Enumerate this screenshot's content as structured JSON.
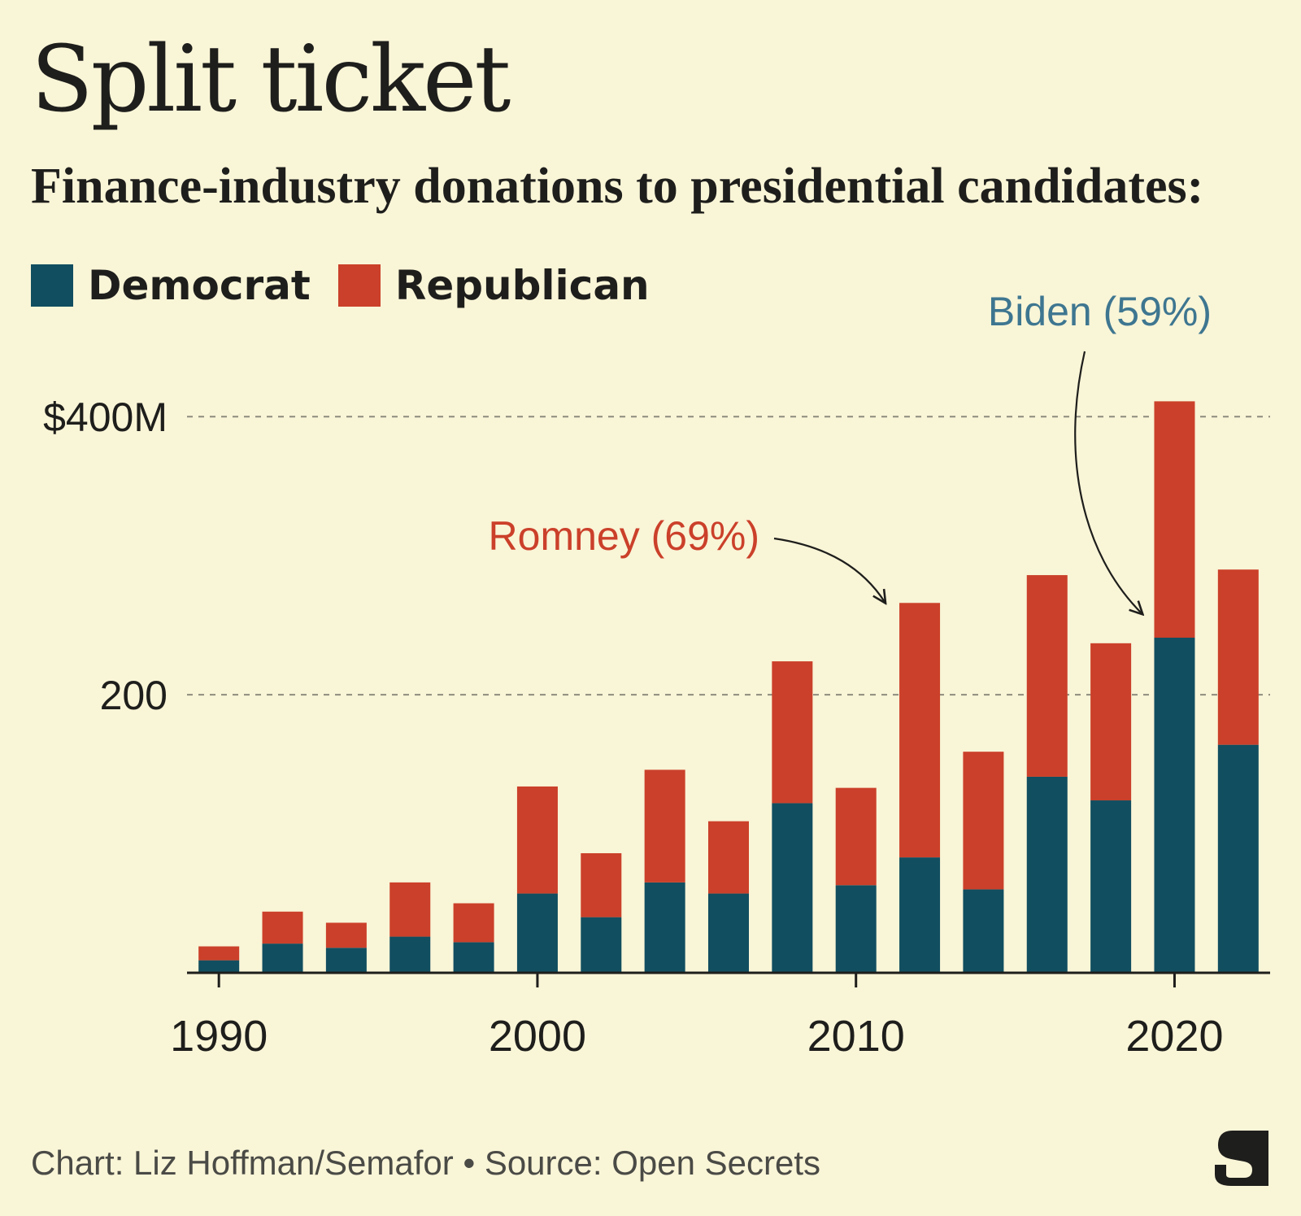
{
  "header": {
    "title": "Split ticket",
    "subtitle": "Finance-industry donations to presidential candidates:"
  },
  "colors": {
    "democrat": "#114e60",
    "republican": "#cb402a",
    "background": "#f9f5d7",
    "text": "#1e1e1c"
  },
  "legend": {
    "items": [
      {
        "label": "Democrat",
        "color": "#114e60"
      },
      {
        "label": "Republican",
        "color": "#cb402a"
      }
    ]
  },
  "annotations": {
    "romney": {
      "text": "Romney (69%)",
      "color": "#cb402a",
      "year": 2012
    },
    "biden": {
      "text": "Biden (59%)",
      "color": "#3e7690",
      "year": 2020
    }
  },
  "footer": {
    "credit": "Chart: Liz Hoffman/Semafor • Source: Open Secrets",
    "logo_icon": "semafor-s-logo-icon"
  },
  "chart_data": {
    "type": "bar",
    "stacked": true,
    "categories": [
      1990,
      1992,
      1994,
      1996,
      1998,
      2000,
      2002,
      2004,
      2006,
      2008,
      2010,
      2012,
      2014,
      2016,
      2018,
      2020,
      2022
    ],
    "series": [
      {
        "name": "Democrat",
        "color": "#114e60",
        "values": [
          9,
          21,
          18,
          26,
          22,
          57,
          40,
          65,
          57,
          122,
          63,
          83,
          60,
          141,
          124,
          241,
          164
        ]
      },
      {
        "name": "Republican",
        "color": "#cb402a",
        "values": [
          10,
          23,
          18,
          39,
          28,
          77,
          46,
          81,
          52,
          102,
          70,
          183,
          99,
          145,
          113,
          170,
          126
        ]
      }
    ],
    "yticks": [
      {
        "value": 400,
        "label": "$400M"
      },
      {
        "value": 200,
        "label": "200"
      }
    ],
    "xticks": [
      1990,
      2000,
      2010,
      2020
    ],
    "ylim": [
      0,
      420
    ],
    "xlim": [
      1989,
      2023
    ],
    "grid": "horizontal-dashed",
    "legend_placement": "top-left"
  }
}
